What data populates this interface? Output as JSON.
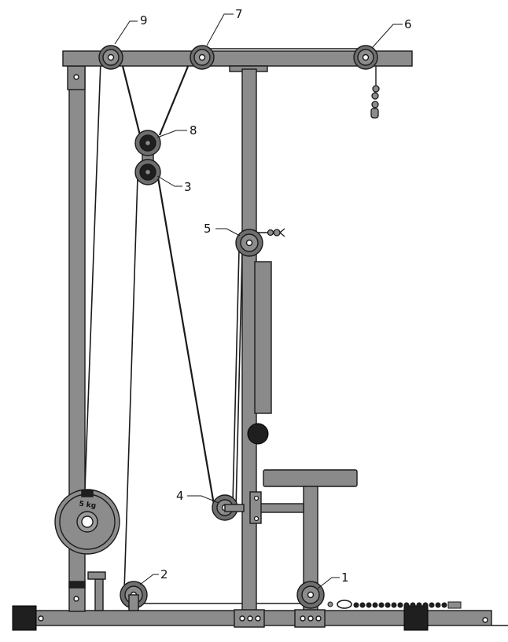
{
  "colors": {
    "frame_fill": "#8c8c8c",
    "frame_stroke": "#1a1a1a",
    "pulley_fill": "#6e6e6e",
    "pad_fill": "#8a8a8a",
    "cable": "#1a1a1a",
    "dark_block": "#1f1f1f",
    "background": "#ffffff"
  },
  "weight_plate": {
    "label": "5 kg"
  },
  "pulley_labels": {
    "p1": "1",
    "p2": "2",
    "p3": "3",
    "p4": "4",
    "p5": "5",
    "p6": "6",
    "p7": "7",
    "p8": "8",
    "p9": "9"
  }
}
